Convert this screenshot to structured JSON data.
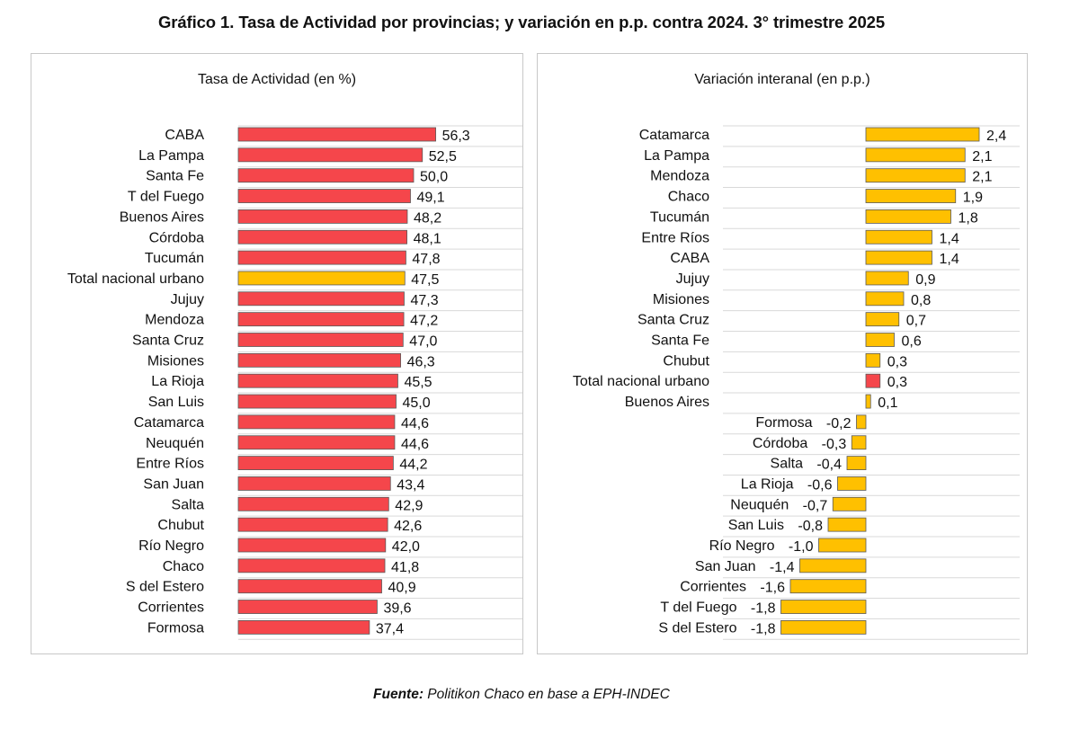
{
  "title": "Gráfico 1. Tasa de Actividad por provincias; y variación en p.p. contra 2024. 3° trimestre 2025",
  "source": {
    "label": "Fuente:",
    "text": " Politikon Chaco en base a EPH-INDEC"
  },
  "colors": {
    "province_bar": "#f5464b",
    "highlight_bar": "#ffc000",
    "variation_bar": "#ffc000",
    "variation_highlight": "#f5464b",
    "bar_border": "#5a5a5a",
    "gridline": "#d9d9d9"
  },
  "chart_data": [
    {
      "type": "bar",
      "orientation": "horizontal",
      "title": "Tasa de Actividad (en %)",
      "xlabel": "",
      "ylabel": "",
      "xlim": [
        0,
        60
      ],
      "decimal_separator": ",",
      "highlight": "Total nacional urbano",
      "categories": [
        "CABA",
        "La Pampa",
        "Santa Fe",
        "T del Fuego",
        "Buenos Aires",
        "Córdoba",
        "Tucumán",
        "Total nacional urbano",
        "Jujuy",
        "Mendoza",
        "Santa Cruz",
        "Misiones",
        "La Rioja",
        "San Luis",
        "Catamarca",
        "Neuquén",
        "Entre Ríos",
        "San Juan",
        "Salta",
        "Chubut",
        "Río Negro",
        "Chaco",
        "S del Estero",
        "Corrientes",
        "Formosa"
      ],
      "values": [
        56.3,
        52.5,
        50.0,
        49.1,
        48.2,
        48.1,
        47.8,
        47.5,
        47.3,
        47.2,
        47.0,
        46.3,
        45.5,
        45.0,
        44.6,
        44.6,
        44.2,
        43.4,
        42.9,
        42.6,
        42.0,
        41.8,
        40.9,
        39.6,
        37.4
      ]
    },
    {
      "type": "bar",
      "orientation": "horizontal",
      "title": "Variación interanal (en p.p.)",
      "xlabel": "",
      "ylabel": "",
      "xlim": [
        -2.5,
        2.6
      ],
      "decimal_separator": ",",
      "highlight": "Total nacional urbano",
      "categories": [
        "Catamarca",
        "La Pampa",
        "Mendoza",
        "Chaco",
        "Tucumán",
        "Entre Ríos",
        "CABA",
        "Jujuy",
        "Misiones",
        "Santa Cruz",
        "Santa Fe",
        "Chubut",
        "Total nacional urbano",
        "Buenos Aires",
        "Formosa",
        "Córdoba",
        "Salta",
        "La Rioja",
        "Neuquén",
        "San Luis",
        "Río Negro",
        "San Juan",
        "Corrientes",
        "T del Fuego",
        "S del Estero"
      ],
      "values": [
        2.4,
        2.1,
        2.1,
        1.9,
        1.8,
        1.4,
        1.4,
        0.9,
        0.8,
        0.7,
        0.6,
        0.3,
        0.3,
        0.1,
        -0.2,
        -0.3,
        -0.4,
        -0.6,
        -0.7,
        -0.8,
        -1.0,
        -1.4,
        -1.6,
        -1.8,
        -1.8
      ]
    }
  ]
}
